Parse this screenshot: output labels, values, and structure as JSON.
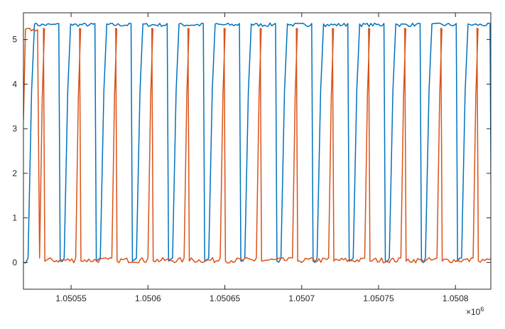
{
  "chart_data": {
    "type": "line",
    "title": "",
    "xlabel": "",
    "ylabel": "",
    "grid": false,
    "legend": "none",
    "xlim": [
      1050519,
      1050823
    ],
    "ylim": [
      -0.6,
      5.6
    ],
    "x_multiplier": "×10",
    "x_multiplier_exponent": "6",
    "x_ticks": [
      1050550,
      1050600,
      1050650,
      1050700,
      1050750,
      1050800
    ],
    "x_tick_labels": [
      "1.05055",
      "1.0506",
      "1.05065",
      "1.0507",
      "1.05075",
      "1.0508"
    ],
    "y_ticks": [
      0,
      1,
      2,
      3,
      4,
      5
    ],
    "y_tick_labels": [
      "0",
      "1",
      "2",
      "3",
      "4",
      "5"
    ],
    "colors": {
      "blue": "#0072BD",
      "orange": "#D95319",
      "axes": "#262626"
    },
    "series": [
      {
        "color": "#0072BD",
        "high": 5.33,
        "low": 0.05,
        "start_value": 0.0,
        "rises": [
          1050522,
          1050545.5,
          1050569,
          1050592.5,
          1050616,
          1050639.5,
          1050663,
          1050686.5,
          1050710,
          1050733.5,
          1050757,
          1050780.5,
          1050804
        ],
        "falls": [
          1050542,
          1050565.5,
          1050589,
          1050612.5,
          1050636,
          1050659.5,
          1050683,
          1050706.5,
          1050730,
          1050753.5,
          1050777,
          1050800.5,
          1050822.5
        ]
      },
      {
        "color": "#D95319",
        "high": 5.22,
        "low": 0.05,
        "start_value": 3.2,
        "rises": [
          1050529.5,
          1050553,
          1050576.5,
          1050600,
          1050623.5,
          1050647,
          1050670.5,
          1050694,
          1050717.5,
          1050741,
          1050764.5,
          1050788,
          1050811.5
        ],
        "falls": [
          1050532,
          1050555.5,
          1050579,
          1050602.5,
          1050626,
          1050649.5,
          1050673,
          1050696.5,
          1050720,
          1050743.5,
          1050767,
          1050790.5,
          1050814
        ]
      }
    ]
  }
}
